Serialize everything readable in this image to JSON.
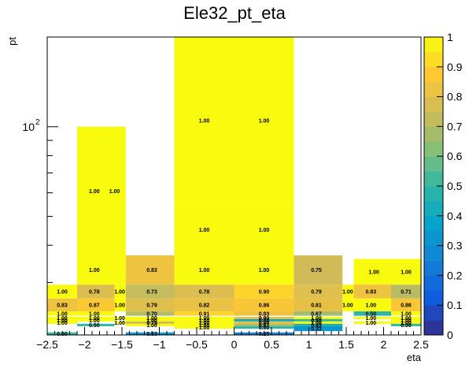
{
  "chart_data": {
    "type": "heatmap",
    "title": "Ele32_pt_eta",
    "xlabel": "eta",
    "ylabel": "pt",
    "xlim": [
      -2.5,
      2.5
    ],
    "x_ticks": [
      -2.5,
      -2,
      -1.5,
      -1,
      -0.5,
      0,
      0.5,
      1,
      1.5,
      2,
      2.5
    ],
    "x_tick_labels": [
      "−2.5",
      "−2",
      "−1.5",
      "−1",
      "−0.5",
      "0",
      "0.5",
      "1",
      "1.5",
      "2",
      "2.5"
    ],
    "y_scale": "log",
    "ylim": [
      20,
      200
    ],
    "y_tick_labels": [
      {
        "value": 100,
        "base": "10",
        "exp": "2"
      }
    ],
    "z_range": [
      0,
      1
    ],
    "colorbar_ticks": [
      "0",
      "0.1",
      "0.2",
      "0.3",
      "0.4",
      "0.5",
      "0.6",
      "0.7",
      "0.8",
      "0.9",
      "1"
    ],
    "cells": [
      {
        "x0": -0.8,
        "x1": 0.8,
        "y0": 55,
        "y1": 200,
        "value": 1.0,
        "labels": [
          {
            "x": -0.4,
            "text": "1.00"
          },
          {
            "x": 0.4,
            "text": "1.00"
          }
        ]
      },
      {
        "x0": -2.1,
        "x1": -1.45,
        "y0": 37,
        "y1": 100,
        "value": 1.0,
        "labels": [
          {
            "x": -1.87,
            "text": "1.00"
          },
          {
            "x": -1.6,
            "text": "1.00"
          }
        ]
      },
      {
        "x0": -0.8,
        "x1": 0.8,
        "y0": 37,
        "y1": 55,
        "value": 1.0,
        "labels": [
          {
            "x": -0.4,
            "text": "1.00"
          },
          {
            "x": 0.4,
            "text": "1.00"
          }
        ]
      },
      {
        "x0": -2.1,
        "x1": -1.45,
        "y0": 29.5,
        "y1": 37,
        "value": 1.0,
        "labels": [
          {
            "x": -1.87,
            "text": "1.00"
          }
        ]
      },
      {
        "x0": -1.45,
        "x1": -0.8,
        "y0": 29.5,
        "y1": 37,
        "value": 0.83,
        "labels": [
          {
            "x": -1.1,
            "text": "0.83"
          }
        ]
      },
      {
        "x0": -0.8,
        "x1": 0.8,
        "y0": 29.5,
        "y1": 37,
        "value": 1.0,
        "labels": [
          {
            "x": -0.4,
            "text": "1.00"
          },
          {
            "x": 0.4,
            "text": "1.00"
          }
        ]
      },
      {
        "x0": 0.8,
        "x1": 1.45,
        "y0": 29.5,
        "y1": 37,
        "value": 0.75,
        "labels": [
          {
            "x": 1.1,
            "text": "0.75"
          }
        ]
      },
      {
        "x0": 1.6,
        "x1": 2.5,
        "y0": 29.5,
        "y1": 36,
        "value": 1.0,
        "labels": [
          {
            "x": 1.87,
            "text": "1.00"
          },
          {
            "x": 2.3,
            "text": "1.00"
          }
        ]
      },
      {
        "x0": -2.5,
        "x1": -2.1,
        "y0": 26.5,
        "y1": 29.5,
        "value": 1.0,
        "labels": [
          {
            "x": -2.3,
            "text": "1.00"
          }
        ]
      },
      {
        "x0": -2.1,
        "x1": -1.6,
        "y0": 26.5,
        "y1": 29.5,
        "value": 0.78,
        "labels": [
          {
            "x": -1.87,
            "text": "0.78"
          }
        ]
      },
      {
        "x0": -1.6,
        "x1": -1.45,
        "y0": 26.5,
        "y1": 29.5,
        "value": 1.0,
        "labels": [
          {
            "x": -1.53,
            "text": "1.00"
          }
        ]
      },
      {
        "x0": -1.45,
        "x1": -0.8,
        "y0": 26.5,
        "y1": 29.5,
        "value": 0.73,
        "labels": [
          {
            "x": -1.1,
            "text": "0.73"
          }
        ]
      },
      {
        "x0": -0.8,
        "x1": 0,
        "y0": 26.5,
        "y1": 29.5,
        "value": 0.78,
        "labels": [
          {
            "x": -0.4,
            "text": "0.78"
          }
        ]
      },
      {
        "x0": 0,
        "x1": 0.8,
        "y0": 26.5,
        "y1": 29.5,
        "value": 0.9,
        "labels": [
          {
            "x": 0.4,
            "text": "0.90"
          }
        ]
      },
      {
        "x0": 0.8,
        "x1": 1.45,
        "y0": 26.5,
        "y1": 29.5,
        "value": 0.79,
        "labels": [
          {
            "x": 1.1,
            "text": "0.79"
          }
        ]
      },
      {
        "x0": 1.45,
        "x1": 1.6,
        "y0": 26.5,
        "y1": 29.5,
        "value": 1.0,
        "labels": [
          {
            "x": 1.52,
            "text": "1.00"
          }
        ]
      },
      {
        "x0": 1.6,
        "x1": 2.1,
        "y0": 26.5,
        "y1": 29.5,
        "value": 0.83,
        "labels": [
          {
            "x": 1.83,
            "text": "0.83"
          }
        ]
      },
      {
        "x0": 2.1,
        "x1": 2.5,
        "y0": 26.5,
        "y1": 29.5,
        "value": 0.71,
        "labels": [
          {
            "x": 2.3,
            "text": "0.71"
          }
        ]
      },
      {
        "x0": -2.5,
        "x1": -2.1,
        "y0": 24,
        "y1": 26.5,
        "value": 0.83,
        "labels": [
          {
            "x": -2.3,
            "text": "0.83"
          }
        ]
      },
      {
        "x0": -2.1,
        "x1": -1.6,
        "y0": 24,
        "y1": 26.5,
        "value": 0.87,
        "labels": [
          {
            "x": -1.87,
            "text": "0.87"
          }
        ]
      },
      {
        "x0": -1.6,
        "x1": -1.45,
        "y0": 24,
        "y1": 26.5,
        "value": 1.0,
        "labels": [
          {
            "x": -1.53,
            "text": "1.00"
          }
        ]
      },
      {
        "x0": -1.45,
        "x1": -0.8,
        "y0": 24,
        "y1": 26.5,
        "value": 0.79,
        "labels": [
          {
            "x": -1.1,
            "text": "0.79"
          }
        ]
      },
      {
        "x0": -0.8,
        "x1": 0,
        "y0": 24,
        "y1": 26.5,
        "value": 0.82,
        "labels": [
          {
            "x": -0.4,
            "text": "0.82"
          }
        ]
      },
      {
        "x0": 0,
        "x1": 0.8,
        "y0": 24,
        "y1": 26.5,
        "value": 0.86,
        "labels": [
          {
            "x": 0.4,
            "text": "0.86"
          }
        ]
      },
      {
        "x0": 0.8,
        "x1": 1.45,
        "y0": 24,
        "y1": 26.5,
        "value": 0.81,
        "labels": [
          {
            "x": 1.1,
            "text": "0.81"
          }
        ]
      },
      {
        "x0": 1.45,
        "x1": 1.6,
        "y0": 24,
        "y1": 26.5,
        "value": 1.0,
        "labels": [
          {
            "x": 1.52,
            "text": "1.00"
          }
        ]
      },
      {
        "x0": 1.6,
        "x1": 2.1,
        "y0": 24,
        "y1": 26.5,
        "value": 1.0,
        "labels": [
          {
            "x": 1.83,
            "text": "1.00"
          }
        ]
      },
      {
        "x0": 2.1,
        "x1": 2.5,
        "y0": 24,
        "y1": 26.5,
        "value": 0.86,
        "labels": [
          {
            "x": 2.3,
            "text": "0.86"
          }
        ]
      },
      {
        "x0": -2.5,
        "x1": -2.1,
        "y0": 23.2,
        "y1": 24,
        "value": 1.0,
        "labels": [
          {
            "x": -2.3,
            "text": "1.00"
          }
        ]
      },
      {
        "x0": -2.1,
        "x1": -1.6,
        "y0": 23.2,
        "y1": 24,
        "value": 1.0,
        "labels": [
          {
            "x": -1.87,
            "text": "1.00"
          }
        ]
      },
      {
        "x0": -1.45,
        "x1": -0.8,
        "y0": 23.2,
        "y1": 24,
        "value": 0.7,
        "labels": [
          {
            "x": -1.1,
            "text": "0.70"
          }
        ]
      },
      {
        "x0": -0.8,
        "x1": 0,
        "y0": 23.2,
        "y1": 24,
        "value": 0.91,
        "labels": [
          {
            "x": -0.4,
            "text": "0.91"
          }
        ]
      },
      {
        "x0": 0,
        "x1": 0.8,
        "y0": 23.2,
        "y1": 24,
        "value": 0.83,
        "labels": [
          {
            "x": 0.4,
            "text": "0.83"
          }
        ]
      },
      {
        "x0": 0.8,
        "x1": 1.45,
        "y0": 23.2,
        "y1": 24,
        "value": 0.67,
        "labels": [
          {
            "x": 1.1,
            "text": "0.67"
          }
        ]
      },
      {
        "x0": 1.6,
        "x1": 2.1,
        "y0": 23.2,
        "y1": 24,
        "value": 0.5,
        "labels": [
          {
            "x": 1.83,
            "text": "0.50"
          }
        ]
      },
      {
        "x0": 2.1,
        "x1": 2.5,
        "y0": 23.2,
        "y1": 24,
        "value": 1.0,
        "labels": [
          {
            "x": 2.3,
            "text": "1.00"
          }
        ]
      },
      {
        "x0": -2.5,
        "x1": -2.1,
        "y0": 22.6,
        "y1": 23.0,
        "value": 1.0,
        "labels": [
          {
            "x": -2.3,
            "text": "1.00"
          }
        ]
      },
      {
        "x0": -2.1,
        "x1": -1.6,
        "y0": 22.6,
        "y1": 23.0,
        "value": 1.0,
        "labels": [
          {
            "x": -1.87,
            "text": "1.00"
          }
        ]
      },
      {
        "x0": -1.6,
        "x1": -1.45,
        "y0": 22.6,
        "y1": 23.0,
        "value": 1.0,
        "labels": [
          {
            "x": -1.53,
            "text": "1.00"
          }
        ]
      },
      {
        "x0": -1.45,
        "x1": -0.8,
        "y0": 22.6,
        "y1": 23.0,
        "value": 1.0,
        "labels": [
          {
            "x": -1.1,
            "text": "1.00"
          }
        ]
      },
      {
        "x0": -0.8,
        "x1": 0,
        "y0": 22.6,
        "y1": 23.0,
        "value": 1.0,
        "labels": [
          {
            "x": -0.4,
            "text": "1.00"
          }
        ]
      },
      {
        "x0": 0,
        "x1": 0.8,
        "y0": 22.6,
        "y1": 23.0,
        "value": 0.8,
        "labels": [
          {
            "x": 0.4,
            "text": "0.80"
          }
        ]
      },
      {
        "x0": 0.8,
        "x1": 1.45,
        "y0": 22.6,
        "y1": 23.0,
        "value": 1.0,
        "labels": [
          {
            "x": 1.1,
            "text": "1.00"
          }
        ]
      },
      {
        "x0": 1.6,
        "x1": 2.1,
        "y0": 22.6,
        "y1": 23.0,
        "value": 1.0,
        "labels": [
          {
            "x": 1.83,
            "text": "1.00"
          }
        ]
      },
      {
        "x0": 2.1,
        "x1": 2.5,
        "y0": 22.6,
        "y1": 23.0,
        "value": 1.0,
        "labels": [
          {
            "x": 2.3,
            "text": "1.00"
          }
        ]
      },
      {
        "x0": -2.5,
        "x1": -2.1,
        "y0": 22.2,
        "y1": 22.6,
        "value": 1.0,
        "labels": [
          {
            "x": -2.3,
            "text": "1.00"
          }
        ]
      },
      {
        "x0": -2.1,
        "x1": -1.6,
        "y0": 22.2,
        "y1": 22.6,
        "value": 1.0,
        "labels": [
          {
            "x": -1.87,
            "text": "1.00"
          }
        ]
      },
      {
        "x0": -1.45,
        "x1": -0.8,
        "y0": 22.2,
        "y1": 22.6,
        "value": 1.0,
        "labels": [
          {
            "x": -1.1,
            "text": "1.00"
          }
        ]
      },
      {
        "x0": -0.8,
        "x1": 0,
        "y0": 22.2,
        "y1": 22.6,
        "value": 1.0,
        "labels": [
          {
            "x": -0.4,
            "text": "1.00"
          }
        ]
      },
      {
        "x0": 0,
        "x1": 0.8,
        "y0": 22.2,
        "y1": 22.6,
        "value": 0.4,
        "labels": [
          {
            "x": 0.4,
            "text": "0.40"
          }
        ]
      },
      {
        "x0": 0.8,
        "x1": 1.45,
        "y0": 22.2,
        "y1": 22.6,
        "value": 0.5,
        "labels": [
          {
            "x": 1.1,
            "text": "0.50"
          }
        ]
      },
      {
        "x0": 2.1,
        "x1": 2.5,
        "y0": 22.2,
        "y1": 22.6,
        "value": 1.0,
        "labels": [
          {
            "x": 2.3,
            "text": "1.00"
          }
        ]
      },
      {
        "x0": -2.5,
        "x1": -2.1,
        "y0": 21.8,
        "y1": 22.2,
        "value": 1.0,
        "labels": [
          {
            "x": -2.3,
            "text": "1.00"
          }
        ]
      },
      {
        "x0": -1.6,
        "x1": -1.45,
        "y0": 21.8,
        "y1": 22.2,
        "value": 1.0,
        "labels": [
          {
            "x": -1.53,
            "text": "1.00"
          }
        ]
      },
      {
        "x0": -1.45,
        "x1": -0.8,
        "y0": 21.8,
        "y1": 22.2,
        "value": 0.75,
        "labels": [
          {
            "x": -1.1,
            "text": "0.75"
          }
        ]
      },
      {
        "x0": -0.8,
        "x1": 0,
        "y0": 21.8,
        "y1": 22.2,
        "value": 1.0,
        "labels": [
          {
            "x": -0.4,
            "text": "1.00"
          }
        ]
      },
      {
        "x0": 0,
        "x1": 0.8,
        "y0": 21.8,
        "y1": 22.2,
        "value": 0.8,
        "labels": [
          {
            "x": 0.4,
            "text": "0.80"
          }
        ]
      },
      {
        "x0": 0.8,
        "x1": 1.45,
        "y0": 21.8,
        "y1": 22.2,
        "value": 1.0,
        "labels": [
          {
            "x": 1.1,
            "text": "1.00"
          }
        ]
      },
      {
        "x0": 1.6,
        "x1": 2.1,
        "y0": 21.8,
        "y1": 22.2,
        "value": 1.0,
        "labels": [
          {
            "x": 1.83,
            "text": "1.00"
          }
        ]
      },
      {
        "x0": 2.1,
        "x1": 2.5,
        "y0": 21.8,
        "y1": 22.2,
        "value": 1.0,
        "labels": [
          {
            "x": 2.3,
            "text": "1.00"
          }
        ]
      },
      {
        "x0": -2.1,
        "x1": -1.6,
        "y0": 21.4,
        "y1": 21.8,
        "value": 0.5,
        "labels": [
          {
            "x": -1.87,
            "text": "0.50"
          }
        ]
      },
      {
        "x0": -1.45,
        "x1": -0.8,
        "y0": 21.4,
        "y1": 21.8,
        "value": 1.0,
        "labels": [
          {
            "x": -1.1,
            "text": "1.00"
          }
        ]
      },
      {
        "x0": -0.8,
        "x1": 0,
        "y0": 21.4,
        "y1": 21.8,
        "value": 1.0,
        "labels": [
          {
            "x": -0.4,
            "text": "1.00"
          }
        ]
      },
      {
        "x0": 0,
        "x1": 0.8,
        "y0": 21.4,
        "y1": 21.8,
        "value": 0.67,
        "labels": [
          {
            "x": 0.4,
            "text": "0.67"
          }
        ]
      },
      {
        "x0": 0.8,
        "x1": 1.45,
        "y0": 21.4,
        "y1": 21.8,
        "value": 0.43,
        "labels": [
          {
            "x": 1.1,
            "text": "0.43"
          }
        ]
      },
      {
        "x0": 2.1,
        "x1": 2.5,
        "y0": 21.4,
        "y1": 21.8,
        "value": 0.5,
        "labels": [
          {
            "x": 2.3,
            "text": "0.50"
          }
        ]
      },
      {
        "x0": -0.8,
        "x1": 0,
        "y0": 21.0,
        "y1": 21.4,
        "value": 1.0,
        "labels": [
          {
            "x": -0.4,
            "text": "1.00"
          }
        ]
      },
      {
        "x0": 0,
        "x1": 0.8,
        "y0": 21.0,
        "y1": 21.4,
        "value": 0.5,
        "labels": [
          {
            "x": 0.4,
            "text": "0.50"
          }
        ]
      },
      {
        "x0": 0.8,
        "x1": 1.45,
        "y0": 20.6,
        "y1": 21.4,
        "value": 0.33,
        "labels": [
          {
            "x": 1.1,
            "text": "0.33"
          }
        ]
      },
      {
        "x0": -2.5,
        "x1": -2.1,
        "y0": 20,
        "y1": 20.4,
        "value": 0.5,
        "labels": [
          {
            "x": -2.3,
            "text": "0.50"
          }
        ]
      },
      {
        "x0": -1.45,
        "x1": -0.8,
        "y0": 20,
        "y1": 20.4,
        "value": 0.33,
        "labels": [
          {
            "x": -1.1,
            "text": "0.33"
          }
        ]
      },
      {
        "x0": 0,
        "x1": 0.8,
        "y0": 20,
        "y1": 20.4,
        "value": 0.25,
        "labels": [
          {
            "x": 0.4,
            "text": "0.25"
          }
        ]
      }
    ]
  }
}
